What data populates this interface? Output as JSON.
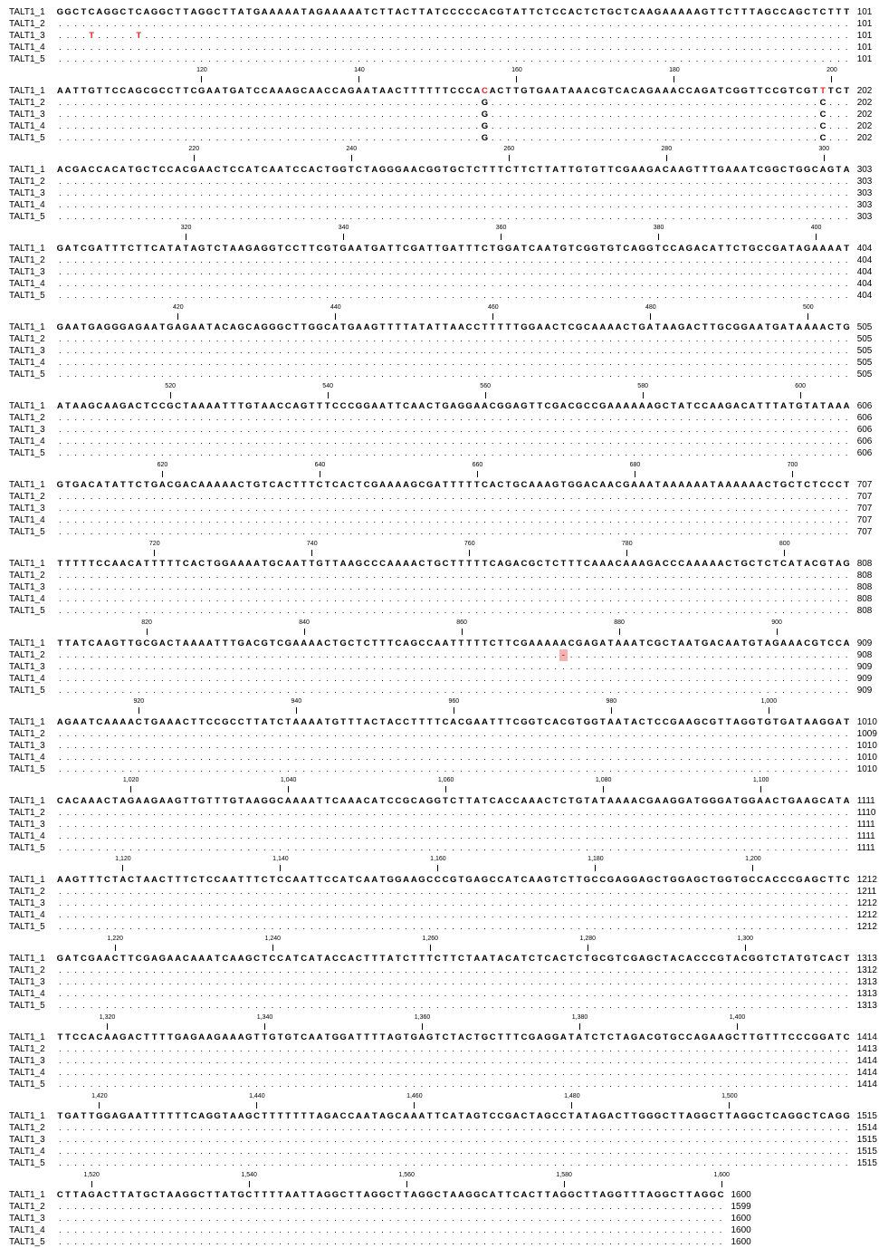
{
  "blocks": [
    {
      "rows": [
        {
          "name": "TALT1_1",
          "seq": "GGCTCAGGCTCAGGCTTAGGCTTATGAAAAATAGAAAAATCTTACTTATCCCCCACGTATTCTCCACTCTGCTCAAGAAAAAGTTCTTTAGCCAGCTCTTT",
          "end": 101
        },
        {
          "name": "TALT1_2",
          "seq": ".....................................................................................................",
          "end": 101
        },
        {
          "name": "TALT1_3",
          "seq": "....T.....T..........................................................................................",
          "end": 101,
          "red": [
            4,
            10
          ]
        },
        {
          "name": "TALT1_4",
          "seq": ".....................................................................................................",
          "end": 101
        },
        {
          "name": "TALT1_5",
          "seq": ".....................................................................................................",
          "end": 101
        }
      ]
    },
    {
      "ruler": [
        120,
        140,
        160,
        180,
        200
      ],
      "rows": [
        {
          "name": "TALT1_1",
          "seq": "AATTGTTCCAGCGCCTTCGAATGATCCAAAGCAACCAGAATAACTTTTTTCCCACACTTGTGAATAAACGTCACAGAAACCAGATCGGTTCCGTCGTTTCT",
          "end": 202,
          "red": [
            54,
            97
          ]
        },
        {
          "name": "TALT1_2",
          "seq": "......................................................G..........................................C...",
          "end": 202
        },
        {
          "name": "TALT1_3",
          "seq": "......................................................G..........................................C...",
          "end": 202
        },
        {
          "name": "TALT1_4",
          "seq": "......................................................G..........................................C...",
          "end": 202
        },
        {
          "name": "TALT1_5",
          "seq": "......................................................G..........................................C...",
          "end": 202
        }
      ]
    },
    {
      "ruler": [
        220,
        240,
        260,
        280,
        300
      ],
      "rows": [
        {
          "name": "TALT1_1",
          "seq": "ACGACCACATGCTCCACGAACTCCATCAATCCACTGGTCTAGGGAACGGTGCTCTTTCTTCTTATTGTGTTCGAAGACAAGTTTGAAATCGGCTGGCAGTA",
          "end": 303
        },
        {
          "name": "TALT1_2",
          "seq": ".....................................................................................................",
          "end": 303
        },
        {
          "name": "TALT1_3",
          "seq": ".....................................................................................................",
          "end": 303
        },
        {
          "name": "TALT1_4",
          "seq": ".....................................................................................................",
          "end": 303
        },
        {
          "name": "TALT1_5",
          "seq": ".....................................................................................................",
          "end": 303
        }
      ]
    },
    {
      "ruler": [
        320,
        340,
        360,
        380,
        400
      ],
      "rows": [
        {
          "name": "TALT1_1",
          "seq": "GATCGATTTCTTCATATAGTCTAAGAGGTCCTTCGTGAATGATTCGATTGATTTCTGGATCAATGTCGGTGTCAGGTCCAGACATTCTGCCGATAGAAAAT",
          "end": 404
        },
        {
          "name": "TALT1_2",
          "seq": ".....................................................................................................",
          "end": 404
        },
        {
          "name": "TALT1_3",
          "seq": ".....................................................................................................",
          "end": 404
        },
        {
          "name": "TALT1_4",
          "seq": ".....................................................................................................",
          "end": 404
        },
        {
          "name": "TALT1_5",
          "seq": ".....................................................................................................",
          "end": 404
        }
      ]
    },
    {
      "ruler": [
        420,
        440,
        460,
        480,
        500
      ],
      "rows": [
        {
          "name": "TALT1_1",
          "seq": "GAATGAGGGAGAATGAGAATACAGCAGGGCTTGGCATGAAGTTTTATATTAACCTTTTTGGAACTCGCAAAACTGATAAGACTTGCGGAATGATAAAACTG",
          "end": 505
        },
        {
          "name": "TALT1_2",
          "seq": ".....................................................................................................",
          "end": 505
        },
        {
          "name": "TALT1_3",
          "seq": ".....................................................................................................",
          "end": 505
        },
        {
          "name": "TALT1_4",
          "seq": ".....................................................................................................",
          "end": 505
        },
        {
          "name": "TALT1_5",
          "seq": ".....................................................................................................",
          "end": 505
        }
      ]
    },
    {
      "ruler": [
        520,
        540,
        560,
        580,
        600
      ],
      "rows": [
        {
          "name": "TALT1_1",
          "seq": "ATAAGCAAGACTCCGCTAAAATTTGTAACCAGTTTCCCGGAATTCAACTGAGGAACGGAGTTCGACGCCGAAAAAAGCTATCCAAGACATTTATGTATAAA",
          "end": 606
        },
        {
          "name": "TALT1_2",
          "seq": ".....................................................................................................",
          "end": 606
        },
        {
          "name": "TALT1_3",
          "seq": ".....................................................................................................",
          "end": 606
        },
        {
          "name": "TALT1_4",
          "seq": ".....................................................................................................",
          "end": 606
        },
        {
          "name": "TALT1_5",
          "seq": ".....................................................................................................",
          "end": 606
        }
      ]
    },
    {
      "ruler": [
        620,
        640,
        660,
        680,
        700
      ],
      "rows": [
        {
          "name": "TALT1_1",
          "seq": "GTGACATATTCTGACGACAAAAACTGTCACTTTCTCACTCGAAAAGCGATTTTTCACTGCAAAGTGGACAACGAAATAAAAAATAAAAAACTGCTCTCCCT",
          "end": 707
        },
        {
          "name": "TALT1_2",
          "seq": ".....................................................................................................",
          "end": 707
        },
        {
          "name": "TALT1_3",
          "seq": ".....................................................................................................",
          "end": 707
        },
        {
          "name": "TALT1_4",
          "seq": ".....................................................................................................",
          "end": 707
        },
        {
          "name": "TALT1_5",
          "seq": ".....................................................................................................",
          "end": 707
        }
      ]
    },
    {
      "ruler": [
        720,
        740,
        760,
        780,
        800
      ],
      "rows": [
        {
          "name": "TALT1_1",
          "seq": "TTTTTCCAACATTTTTCACTGGAAAATGCAATTGTTAAGCCCAAAACTGCTTTTTCAGACGCTCTTTCAAACAAAGACCCAAAAACTGCTCTCATACGTAG",
          "end": 808
        },
        {
          "name": "TALT1_2",
          "seq": ".....................................................................................................",
          "end": 808
        },
        {
          "name": "TALT1_3",
          "seq": ".....................................................................................................",
          "end": 808
        },
        {
          "name": "TALT1_4",
          "seq": ".....................................................................................................",
          "end": 808
        },
        {
          "name": "TALT1_5",
          "seq": ".....................................................................................................",
          "end": 808
        }
      ]
    },
    {
      "ruler": [
        820,
        840,
        860,
        880,
        900
      ],
      "rows": [
        {
          "name": "TALT1_1",
          "seq": "TTATCAAGTTGCGACTAAAATTTGACGTCGAAAACTGCTCTTTCAGCCAATTTTTCTTCGAAAAACGAGATAAATCGCTAATGACAATGTAGAAACGTCCA",
          "end": 909
        },
        {
          "name": "TALT1_2",
          "seq": "................................................................-....................................",
          "end": 908,
          "shade": [
            64
          ]
        },
        {
          "name": "TALT1_3",
          "seq": ".....................................................................................................",
          "end": 909
        },
        {
          "name": "TALT1_4",
          "seq": ".....................................................................................................",
          "end": 909
        },
        {
          "name": "TALT1_5",
          "seq": ".....................................................................................................",
          "end": 909
        }
      ]
    },
    {
      "ruler": [
        920,
        940,
        960,
        980,
        {
          "value": 1000,
          "label": "1,000"
        }
      ],
      "rows": [
        {
          "name": "TALT1_1",
          "seq": "AGAATCAAAACTGAAACTTCCGCCTTATCTAAAATGTTTACTACCTTTTCACGAATTTCGGTCACGTGGTAATACTCCGAAGCGTTAGGTGTGATAAGGAT",
          "end": 1010
        },
        {
          "name": "TALT1_2",
          "seq": ".....................................................................................................",
          "end": 1009
        },
        {
          "name": "TALT1_3",
          "seq": ".....................................................................................................",
          "end": 1010
        },
        {
          "name": "TALT1_4",
          "seq": ".....................................................................................................",
          "end": 1010
        },
        {
          "name": "TALT1_5",
          "seq": ".....................................................................................................",
          "end": 1010
        }
      ]
    },
    {
      "ruler": [
        {
          "value": 1020,
          "label": "1,020"
        },
        {
          "value": 1040,
          "label": "1,040"
        },
        {
          "value": 1060,
          "label": "1,060"
        },
        {
          "value": 1080,
          "label": "1,080"
        },
        {
          "value": 1100,
          "label": "1,100"
        }
      ],
      "rows": [
        {
          "name": "TALT1_1",
          "seq": "CACAAACTAGAAGAAGTTGTTTGTAAGGCAAAATTCAAACATCCGCAGGTCTTATCACCAAACTCTGTATAAAACGAAGGATGGGATGGAACTGAAGCATA",
          "end": 1111
        },
        {
          "name": "TALT1_2",
          "seq": ".....................................................................................................",
          "end": 1110
        },
        {
          "name": "TALT1_3",
          "seq": ".....................................................................................................",
          "end": 1111
        },
        {
          "name": "TALT1_4",
          "seq": ".....................................................................................................",
          "end": 1111
        },
        {
          "name": "TALT1_5",
          "seq": ".....................................................................................................",
          "end": 1111
        }
      ]
    },
    {
      "ruler": [
        {
          "value": 1120,
          "label": "1,120"
        },
        {
          "value": 1140,
          "label": "1,140"
        },
        {
          "value": 1160,
          "label": "1,160"
        },
        {
          "value": 1180,
          "label": "1,180"
        },
        {
          "value": 1200,
          "label": "1,200"
        }
      ],
      "rows": [
        {
          "name": "TALT1_1",
          "seq": "AAGTTTCTACTAACTTTCTCCAATTTCTCCAATTCCATCAATGGAAGCCCGTGAGCCATCAAGTCTTGCCGAGGAGCTGGAGCTGGTGCCACCCGAGCTTC",
          "end": 1212
        },
        {
          "name": "TALT1_2",
          "seq": ".....................................................................................................",
          "end": 1211
        },
        {
          "name": "TALT1_3",
          "seq": ".....................................................................................................",
          "end": 1212
        },
        {
          "name": "TALT1_4",
          "seq": ".....................................................................................................",
          "end": 1212
        },
        {
          "name": "TALT1_5",
          "seq": ".....................................................................................................",
          "end": 1212
        }
      ]
    },
    {
      "ruler": [
        {
          "value": 1220,
          "label": "1,220"
        },
        {
          "value": 1240,
          "label": "1,240"
        },
        {
          "value": 1260,
          "label": "1,260"
        },
        {
          "value": 1280,
          "label": "1,280"
        },
        {
          "value": 1300,
          "label": "1,300"
        }
      ],
      "rows": [
        {
          "name": "TALT1_1",
          "seq": "GATCGAACTTCGAGAACAAATCAAGCTCCATCATACCACTTTATCTTTCTTCTAATACATCTCACTCTGCGTCGAGCTACACCCGTACGGTCTATGTCACT",
          "end": 1313
        },
        {
          "name": "TALT1_2",
          "seq": ".....................................................................................................",
          "end": 1312
        },
        {
          "name": "TALT1_3",
          "seq": ".....................................................................................................",
          "end": 1313
        },
        {
          "name": "TALT1_4",
          "seq": ".....................................................................................................",
          "end": 1313
        },
        {
          "name": "TALT1_5",
          "seq": ".....................................................................................................",
          "end": 1313
        }
      ]
    },
    {
      "ruler": [
        {
          "value": 1320,
          "label": "1,320"
        },
        {
          "value": 1340,
          "label": "1,340"
        },
        {
          "value": 1360,
          "label": "1,360"
        },
        {
          "value": 1380,
          "label": "1,380"
        },
        {
          "value": 1400,
          "label": "1,400"
        }
      ],
      "rows": [
        {
          "name": "TALT1_1",
          "seq": "TTCCACAAGACTTTTGAGAAGAAAGTTGTGTCAATGGATTTTAGTGAGTCTACTGCTTTCGAGGATATCTCTAGACGTGCCAGAAGCTTGTTTCCCGGATC",
          "end": 1414
        },
        {
          "name": "TALT1_2",
          "seq": ".....................................................................................................",
          "end": 1413
        },
        {
          "name": "TALT1_3",
          "seq": ".....................................................................................................",
          "end": 1414
        },
        {
          "name": "TALT1_4",
          "seq": ".....................................................................................................",
          "end": 1414
        },
        {
          "name": "TALT1_5",
          "seq": ".....................................................................................................",
          "end": 1414
        }
      ]
    },
    {
      "ruler": [
        {
          "value": 1420,
          "label": "1,420"
        },
        {
          "value": 1440,
          "label": "1,440"
        },
        {
          "value": 1460,
          "label": "1,460"
        },
        {
          "value": 1480,
          "label": "1,480"
        },
        {
          "value": 1500,
          "label": "1,500"
        }
      ],
      "rows": [
        {
          "name": "TALT1_1",
          "seq": "TGATTGGAGAATTTTTTCAGGTAAGCTTTTTTTAGACCAATAGCAAATTCATAGTCCGACTAGCCTATAGACTTGGGCTTAGGCTTAGGCTCAGGCTCAGG",
          "end": 1515
        },
        {
          "name": "TALT1_2",
          "seq": ".....................................................................................................",
          "end": 1514
        },
        {
          "name": "TALT1_3",
          "seq": ".....................................................................................................",
          "end": 1515
        },
        {
          "name": "TALT1_4",
          "seq": ".....................................................................................................",
          "end": 1515
        },
        {
          "name": "TALT1_5",
          "seq": ".....................................................................................................",
          "end": 1515
        }
      ]
    },
    {
      "ruler": [
        {
          "value": 1520,
          "label": "1,520"
        },
        {
          "value": 1540,
          "label": "1,540"
        },
        {
          "value": 1560,
          "label": "1,560"
        },
        {
          "value": 1580,
          "label": "1,580"
        },
        {
          "value": 1600,
          "label": "1,600"
        }
      ],
      "rows": [
        {
          "name": "TALT1_1",
          "seq": "CTTAGACTTATGCTAAGGCTTATGCTTTTAATTAGGCTTAGGCTTAGGCTAAGGCATTCACTTAGGCTTAGGTTTAGGCTTAGGC",
          "end": 1600
        },
        {
          "name": "TALT1_2",
          "seq": ".....................................................................................",
          "end": 1599
        },
        {
          "name": "TALT1_3",
          "seq": ".....................................................................................",
          "end": 1600
        },
        {
          "name": "TALT1_4",
          "seq": ".....................................................................................",
          "end": 1600
        },
        {
          "name": "TALT1_5",
          "seq": ".....................................................................................",
          "end": 1600
        }
      ]
    }
  ]
}
